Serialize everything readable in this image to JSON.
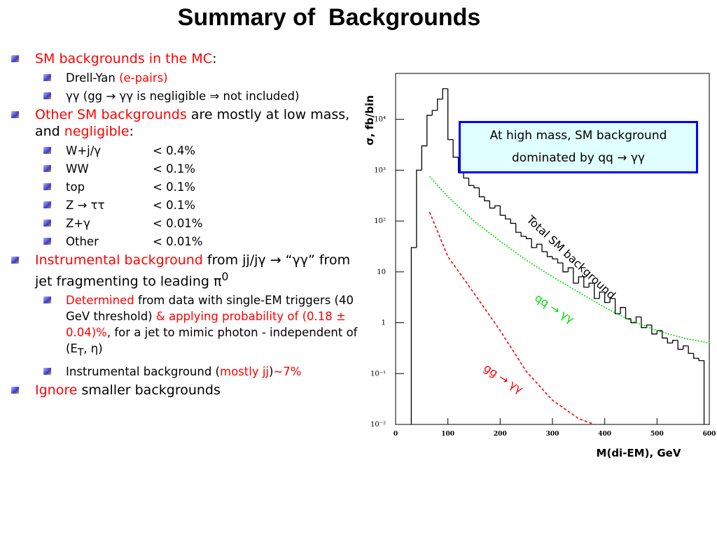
{
  "slide": {
    "title": "Summary of  Backgrounds",
    "bullets": [
      {
        "level": 1,
        "runs": [
          {
            "text": "SM backgrounds in the MC",
            "color": "#ff0000"
          },
          {
            "text": ":"
          }
        ]
      },
      {
        "level": 2,
        "runs": [
          {
            "text": "Drell-Yan "
          },
          {
            "text": "(e-pairs)",
            "color": "#ff0000"
          }
        ]
      },
      {
        "level": 2,
        "runs": [
          {
            "text": "γγ  (gg → γγ is negligible ⇒ not included)"
          }
        ]
      },
      {
        "level": 1,
        "runs": [
          {
            "text": "Other SM backgrounds",
            "color": "#ff0000"
          },
          {
            "text": " are mostly at low mass, and  "
          },
          {
            "text": "negligible",
            "color": "#ff0000"
          },
          {
            "text": ":"
          }
        ]
      },
      {
        "level": 2,
        "cols": [
          "W+j/γ",
          "< 0.4%"
        ]
      },
      {
        "level": 2,
        "cols": [
          "WW",
          "< 0.1%"
        ]
      },
      {
        "level": 2,
        "cols": [
          "top",
          "< 0.1%"
        ]
      },
      {
        "level": 2,
        "cols": [
          "Z → ττ",
          "< 0.1%"
        ]
      },
      {
        "level": 2,
        "cols": [
          "Z+γ",
          "< 0.01%"
        ]
      },
      {
        "level": 2,
        "cols": [
          "Other",
          "< 0.01%"
        ]
      },
      {
        "level": 1,
        "runs": [
          {
            "text": "Instrumental background",
            "color": "#ff0000"
          },
          {
            "text": " from jj/jγ → “γγ” from jet fragmenting to leading π"
          },
          {
            "text": "0",
            "style": "sup"
          }
        ]
      },
      {
        "level": 2,
        "runs": [
          {
            "text": "Determined",
            "color": "#ff0000"
          },
          {
            "text": " from data with single-EM triggers (40 GeV threshold) "
          },
          {
            "text": "& applying probability of (0.18 ± 0.04)%",
            "color": "#ff0000"
          },
          {
            "text": ", for a jet to mimic photon - independent of (E"
          },
          {
            "text": "T",
            "style": "sub"
          },
          {
            "text": ", η)"
          }
        ]
      },
      {
        "level": 2,
        "runs": [
          {
            "text": "Instrumental background ("
          },
          {
            "text": "mostly jj",
            "color": "#ff0000"
          },
          {
            "text": ")"
          },
          {
            "text": "~7%",
            "color": "#ff0000"
          }
        ]
      },
      {
        "level": 1,
        "runs": [
          {
            "text": "Ignore",
            "color": "#ff0000"
          },
          {
            "text": " smaller backgrounds"
          }
        ]
      }
    ]
  },
  "chart_data": {
    "type": "histogram",
    "name": "Total SM background",
    "color": "#000000",
    "bins": [
      30,
      40,
      50,
      60,
      70,
      80,
      90,
      100,
      110,
      120,
      130,
      140,
      150,
      160,
      170,
      180,
      190,
      200,
      210,
      220,
      230,
      240,
      250,
      260,
      270,
      280,
      290,
      300,
      310,
      320,
      330,
      340,
      350,
      360,
      370,
      380,
      390,
      400,
      410,
      420,
      430,
      440,
      450,
      460,
      470,
      480,
      490,
      500,
      510,
      520,
      530,
      540,
      550,
      560,
      570,
      580,
      590
    ],
    "values": [
      30,
      1000,
      3000,
      12000,
      15000,
      25000,
      40000,
      4000,
      1800,
      900,
      700,
      500,
      450,
      300,
      250,
      180,
      200,
      130,
      110,
      90,
      60,
      50,
      45,
      30,
      35,
      25,
      20,
      18,
      15,
      10,
      12,
      6,
      8,
      5,
      6,
      3,
      4,
      2.5,
      3,
      1.5,
      2,
      1.2,
      1,
      1.3,
      0.8,
      0.9,
      0.6,
      0.7,
      0.5,
      0.4,
      0.45,
      0.3,
      0.35,
      0.25,
      0.2,
      0.18
    ],
    "series": [
      {
        "name": "qq → γγ",
        "color": "#00dd00",
        "style": "dotted",
        "x": [
          65,
          100,
          150,
          200,
          250,
          300,
          350,
          400,
          450,
          500,
          550,
          600
        ],
        "values": [
          750,
          300,
          100,
          40,
          17,
          8,
          4,
          2,
          1.1,
          0.7,
          0.5,
          0.4
        ]
      },
      {
        "name": "gg → γγ",
        "color": "#ff0000",
        "style": "dashed",
        "x": [
          65,
          100,
          150,
          200,
          250,
          300,
          350,
          380
        ],
        "values": [
          150,
          20,
          3.8,
          0.7,
          0.11,
          0.03,
          0.013,
          0.01
        ]
      }
    ],
    "annotation": "At high mass, SM background dominated by qq → γγ",
    "xlabel": "M(di-EM), GeV",
    "ylabel": "σ, fb/bin",
    "xlim": [
      0,
      600
    ],
    "ylim": [
      0.01,
      80000
    ],
    "log_y": true,
    "xticks": [
      0,
      100,
      200,
      300,
      400,
      500,
      600
    ],
    "yticks": [
      {
        "value": 0.01,
        "label": "10⁻²"
      },
      {
        "value": 0.1,
        "label": "10⁻¹"
      },
      1,
      10,
      {
        "value": 100,
        "label": "10²"
      },
      {
        "value": 1000,
        "label": "10³"
      },
      {
        "value": 10000,
        "label": "10⁴"
      }
    ]
  }
}
